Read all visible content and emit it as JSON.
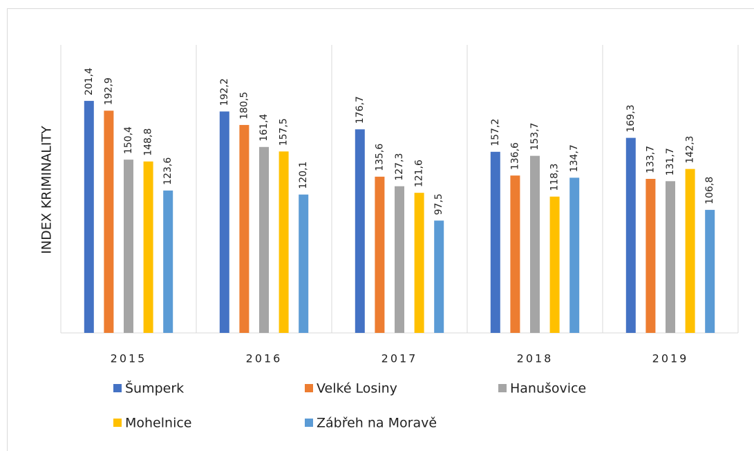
{
  "chart_data": {
    "type": "bar",
    "y_axis_label": "INDEX KRIMINALITY",
    "categories": [
      "2015",
      "2016",
      "2017",
      "2018",
      "2019"
    ],
    "ylim": [
      0,
      250
    ],
    "legend": "bottom",
    "series": [
      {
        "name": "Šumperk",
        "color": "#4472c4",
        "values": [
          201.4,
          192.2,
          176.7,
          157.2,
          169.3
        ],
        "value_labels": [
          "201,4",
          "192,2",
          "176,7",
          "157,2",
          "169,3"
        ]
      },
      {
        "name": "Velké Losiny",
        "color": "#ed7d31",
        "values": [
          192.9,
          180.5,
          135.6,
          136.6,
          133.7
        ],
        "value_labels": [
          "192,9",
          "180,5",
          "135,6",
          "136,6",
          "133,7"
        ]
      },
      {
        "name": "Hanušovice",
        "color": "#a5a5a5",
        "values": [
          150.4,
          161.4,
          127.3,
          153.7,
          131.7
        ],
        "value_labels": [
          "150,4",
          "161,4",
          "127,3",
          "153,7",
          "131,7"
        ]
      },
      {
        "name": "Mohelnice",
        "color": "#ffc000",
        "values": [
          148.8,
          157.5,
          121.6,
          118.3,
          142.3
        ],
        "value_labels": [
          "148,8",
          "157,5",
          "121,6",
          "118,3",
          "142,3"
        ]
      },
      {
        "name": "Zábřeh na Moravě",
        "color": "#5b9bd5",
        "values": [
          123.6,
          120.1,
          97.5,
          134.7,
          106.8
        ],
        "value_labels": [
          "123,6",
          "120,1",
          "97,5",
          "134,7",
          "106,8"
        ]
      }
    ]
  }
}
